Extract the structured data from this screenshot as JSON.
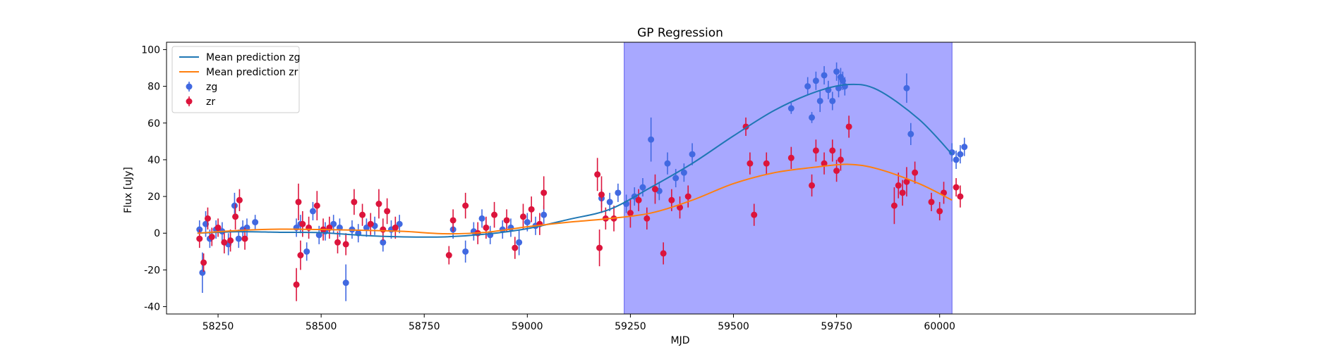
{
  "chart_data": {
    "type": "scatter",
    "title": "GP Regression",
    "xlabel": "MJD",
    "ylabel": "Flux [uJy]",
    "xlim": [
      58125,
      60620
    ],
    "ylim": [
      -44,
      104
    ],
    "xticks": [
      58250,
      58500,
      58750,
      59000,
      59250,
      59500,
      59750,
      60000
    ],
    "yticks": [
      -40,
      -20,
      0,
      20,
      40,
      60,
      80,
      100
    ],
    "shaded_region": {
      "x": [
        59235,
        60030
      ],
      "color": "#a8a8ff"
    },
    "legend_position": "upper-left",
    "legend": [
      {
        "label": "Mean prediction zg",
        "kind": "line",
        "color": "#1f77b4"
      },
      {
        "label": "Mean prediction zr",
        "kind": "line",
        "color": "#ff7f0e"
      },
      {
        "label": "zg",
        "kind": "errorbar",
        "color": "#4169e1"
      },
      {
        "label": "zr",
        "kind": "errorbar",
        "color": "#dc143c"
      }
    ],
    "series": [
      {
        "name": "Mean prediction zg",
        "kind": "line",
        "color": "#1f77b4",
        "x": [
          58200,
          58300,
          58400,
          58500,
          58600,
          58700,
          58800,
          58900,
          59000,
          59100,
          59200,
          59300,
          59400,
          59500,
          59600,
          59700,
          59780,
          59850,
          59950,
          60030
        ],
        "y": [
          0,
          0.8,
          0.5,
          0.3,
          -1.2,
          -2,
          -2,
          -0.5,
          2.5,
          7.5,
          13,
          25,
          38,
          53,
          67,
          77,
          81,
          78,
          62,
          43
        ]
      },
      {
        "name": "Mean prediction zr",
        "kind": "line",
        "color": "#ff7f0e",
        "x": [
          58200,
          58300,
          58400,
          58500,
          58600,
          58700,
          58800,
          58900,
          59000,
          59100,
          59200,
          59300,
          59400,
          59500,
          59600,
          59700,
          59780,
          59850,
          59950,
          60030
        ],
        "y": [
          0,
          1.5,
          2.2,
          2,
          1.6,
          1,
          -0.3,
          0.5,
          3.5,
          6,
          8,
          11,
          18,
          27,
          33,
          36,
          37.5,
          35,
          27,
          18
        ]
      },
      {
        "name": "zg",
        "kind": "errorbar",
        "color": "#4169e1",
        "x": [
          58205,
          58212,
          58220,
          58230,
          58245,
          58260,
          58275,
          58290,
          58300,
          58310,
          58320,
          58340,
          58440,
          58450,
          58465,
          58480,
          58495,
          58510,
          58530,
          58545,
          58560,
          58575,
          58590,
          58610,
          58630,
          58650,
          58670,
          58690,
          58820,
          58850,
          58870,
          58890,
          58910,
          58940,
          58960,
          58980,
          59000,
          59020,
          59040,
          59180,
          59200,
          59220,
          59240,
          59260,
          59280,
          59300,
          59320,
          59340,
          59360,
          59380,
          59400,
          59640,
          59680,
          59690,
          59700,
          59710,
          59720,
          59730,
          59740,
          59750,
          59755,
          59760,
          59765,
          59770,
          59920,
          59930,
          60030,
          60040,
          60050,
          60060
        ],
        "y": [
          2,
          -21.5,
          5,
          -3,
          2,
          1,
          -6,
          15,
          -3,
          2,
          3,
          6,
          3,
          5,
          -10,
          12,
          -1,
          1,
          5,
          3,
          -27,
          2,
          0,
          3,
          4,
          -5,
          2,
          5,
          2,
          -10,
          1,
          8,
          -1,
          2,
          3,
          -5,
          6,
          4,
          10,
          19,
          17,
          22,
          16,
          20,
          25,
          51,
          23,
          38,
          30,
          33,
          43,
          68,
          80,
          63,
          83,
          72,
          86,
          78,
          72,
          88,
          79,
          85,
          83,
          80,
          79,
          54,
          44,
          40,
          43,
          47
        ],
        "err": [
          5,
          11,
          7,
          5,
          5,
          5,
          6,
          7,
          5,
          5,
          5,
          4,
          5,
          5,
          5,
          5,
          5,
          5,
          5,
          5,
          10,
          5,
          5,
          5,
          5,
          5,
          5,
          5,
          5,
          6,
          5,
          5,
          5,
          5,
          5,
          7,
          5,
          5,
          5,
          5,
          5,
          5,
          5,
          5,
          5,
          12,
          5,
          6,
          5,
          5,
          6,
          3,
          5,
          3,
          5,
          6,
          5,
          5,
          5,
          5,
          5,
          5,
          5,
          5,
          8,
          6,
          5,
          5,
          5,
          5
        ]
      },
      {
        "name": "zr",
        "kind": "errorbar",
        "color": "#dc143c",
        "x": [
          58205,
          58215,
          58225,
          58235,
          58250,
          58265,
          58280,
          58292,
          58302,
          58315,
          58440,
          58445,
          58450,
          58455,
          58470,
          58490,
          58505,
          58520,
          58540,
          58560,
          58580,
          58600,
          58620,
          58640,
          58650,
          58660,
          58680,
          58810,
          58820,
          58850,
          58880,
          58900,
          58920,
          58950,
          58970,
          58990,
          59010,
          59030,
          59040,
          59170,
          59175,
          59180,
          59190,
          59210,
          59250,
          59270,
          59290,
          59310,
          59330,
          59350,
          59370,
          59390,
          59530,
          59540,
          59550,
          59580,
          59640,
          59690,
          59700,
          59720,
          59740,
          59750,
          59760,
          59780,
          59890,
          59900,
          59910,
          59920,
          59940,
          59980,
          60000,
          60010,
          60040,
          60050
        ],
        "y": [
          -3,
          -16,
          8,
          -2,
          3,
          -5,
          -4,
          9,
          18,
          -3,
          -28,
          17,
          -12,
          5,
          3,
          15,
          2,
          3,
          -5,
          -6,
          17,
          10,
          5,
          16,
          2,
          12,
          3,
          -12,
          7,
          15,
          0,
          3,
          10,
          7,
          -8,
          9,
          13,
          5,
          22,
          32,
          -8,
          21,
          8,
          8,
          11,
          18,
          8,
          24,
          -11,
          18,
          14,
          20,
          58,
          38,
          10,
          38,
          41,
          26,
          45,
          38,
          45,
          34,
          40,
          58,
          15,
          26,
          22,
          28,
          33,
          17,
          12,
          22,
          25,
          20
        ],
        "err": [
          5,
          5,
          6,
          5,
          5,
          6,
          6,
          7,
          6,
          6,
          9,
          10,
          8,
          7,
          6,
          8,
          6,
          6,
          6,
          6,
          7,
          6,
          6,
          8,
          6,
          7,
          6,
          5,
          6,
          7,
          6,
          6,
          7,
          6,
          6,
          7,
          7,
          6,
          9,
          9,
          10,
          10,
          6,
          7,
          8,
          6,
          6,
          8,
          6,
          6,
          6,
          6,
          5,
          6,
          6,
          6,
          6,
          6,
          6,
          6,
          6,
          6,
          6,
          6,
          10,
          7,
          7,
          8,
          6,
          5,
          5,
          6,
          5,
          6
        ]
      }
    ]
  }
}
